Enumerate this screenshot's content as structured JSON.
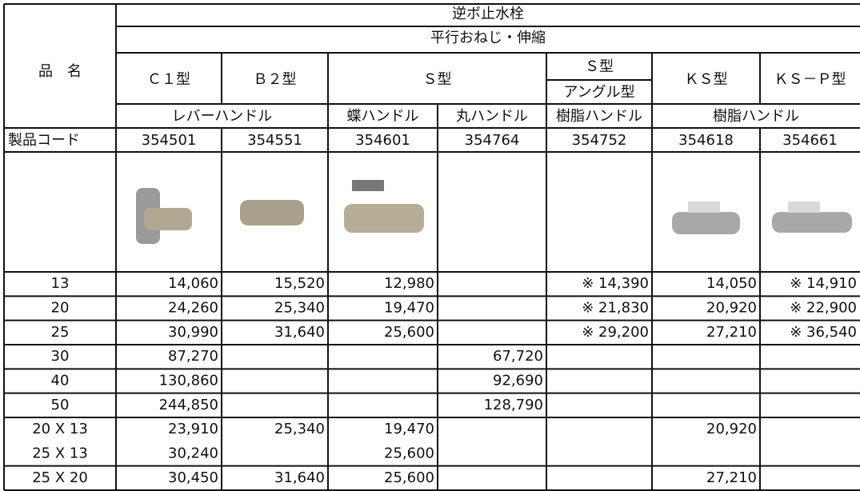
{
  "header": {
    "title": "逆ボ止水栓",
    "subtitle": "平行おねじ・伸縮",
    "name_label": "品　名",
    "code_label": "製品コード"
  },
  "types": [
    {
      "label": "Ｃ１型"
    },
    {
      "label": "Ｂ２型"
    },
    {
      "label": "Ｓ型"
    },
    {
      "label": "Ｓ型",
      "sub": "アングル型"
    },
    {
      "label": "ＫＳ型"
    },
    {
      "label": "ＫＳ－Ｐ型"
    }
  ],
  "handles": [
    "レバーハンドル",
    "蝶ハンドル",
    "丸ハンドル",
    "樹脂ハンドル",
    "樹脂ハンドル"
  ],
  "codes": [
    "354501",
    "354551",
    "354601",
    "354764",
    "354752",
    "354618",
    "354661"
  ],
  "rows": [
    [
      "13",
      "14,060",
      "15,520",
      "12,980",
      null,
      "※ 14,390",
      "14,050",
      "※ 14,910"
    ],
    [
      "20",
      "24,260",
      "25,340",
      "19,470",
      null,
      "※ 21,830",
      "20,920",
      "※ 22,900"
    ],
    [
      "25",
      "30,990",
      "31,640",
      "25,600",
      null,
      "※ 29,200",
      "27,210",
      "※ 36,540"
    ],
    [
      "30",
      "87,270",
      null,
      null,
      "67,720",
      null,
      null,
      null
    ],
    [
      "40",
      "130,860",
      null,
      null,
      "92,690",
      null,
      null,
      null
    ],
    [
      "50",
      "244,850",
      null,
      null,
      "128,790",
      null,
      null,
      null
    ],
    [
      "20 X 13",
      "23,910",
      "25,340",
      "19,470",
      null,
      null,
      "20,920",
      null
    ],
    [
      "25 X 13",
      "30,240",
      null,
      "25,600",
      null,
      null,
      null,
      null
    ],
    [
      "25 X 20",
      "30,450",
      "31,640",
      "25,600",
      null,
      null,
      "27,210",
      null
    ]
  ]
}
